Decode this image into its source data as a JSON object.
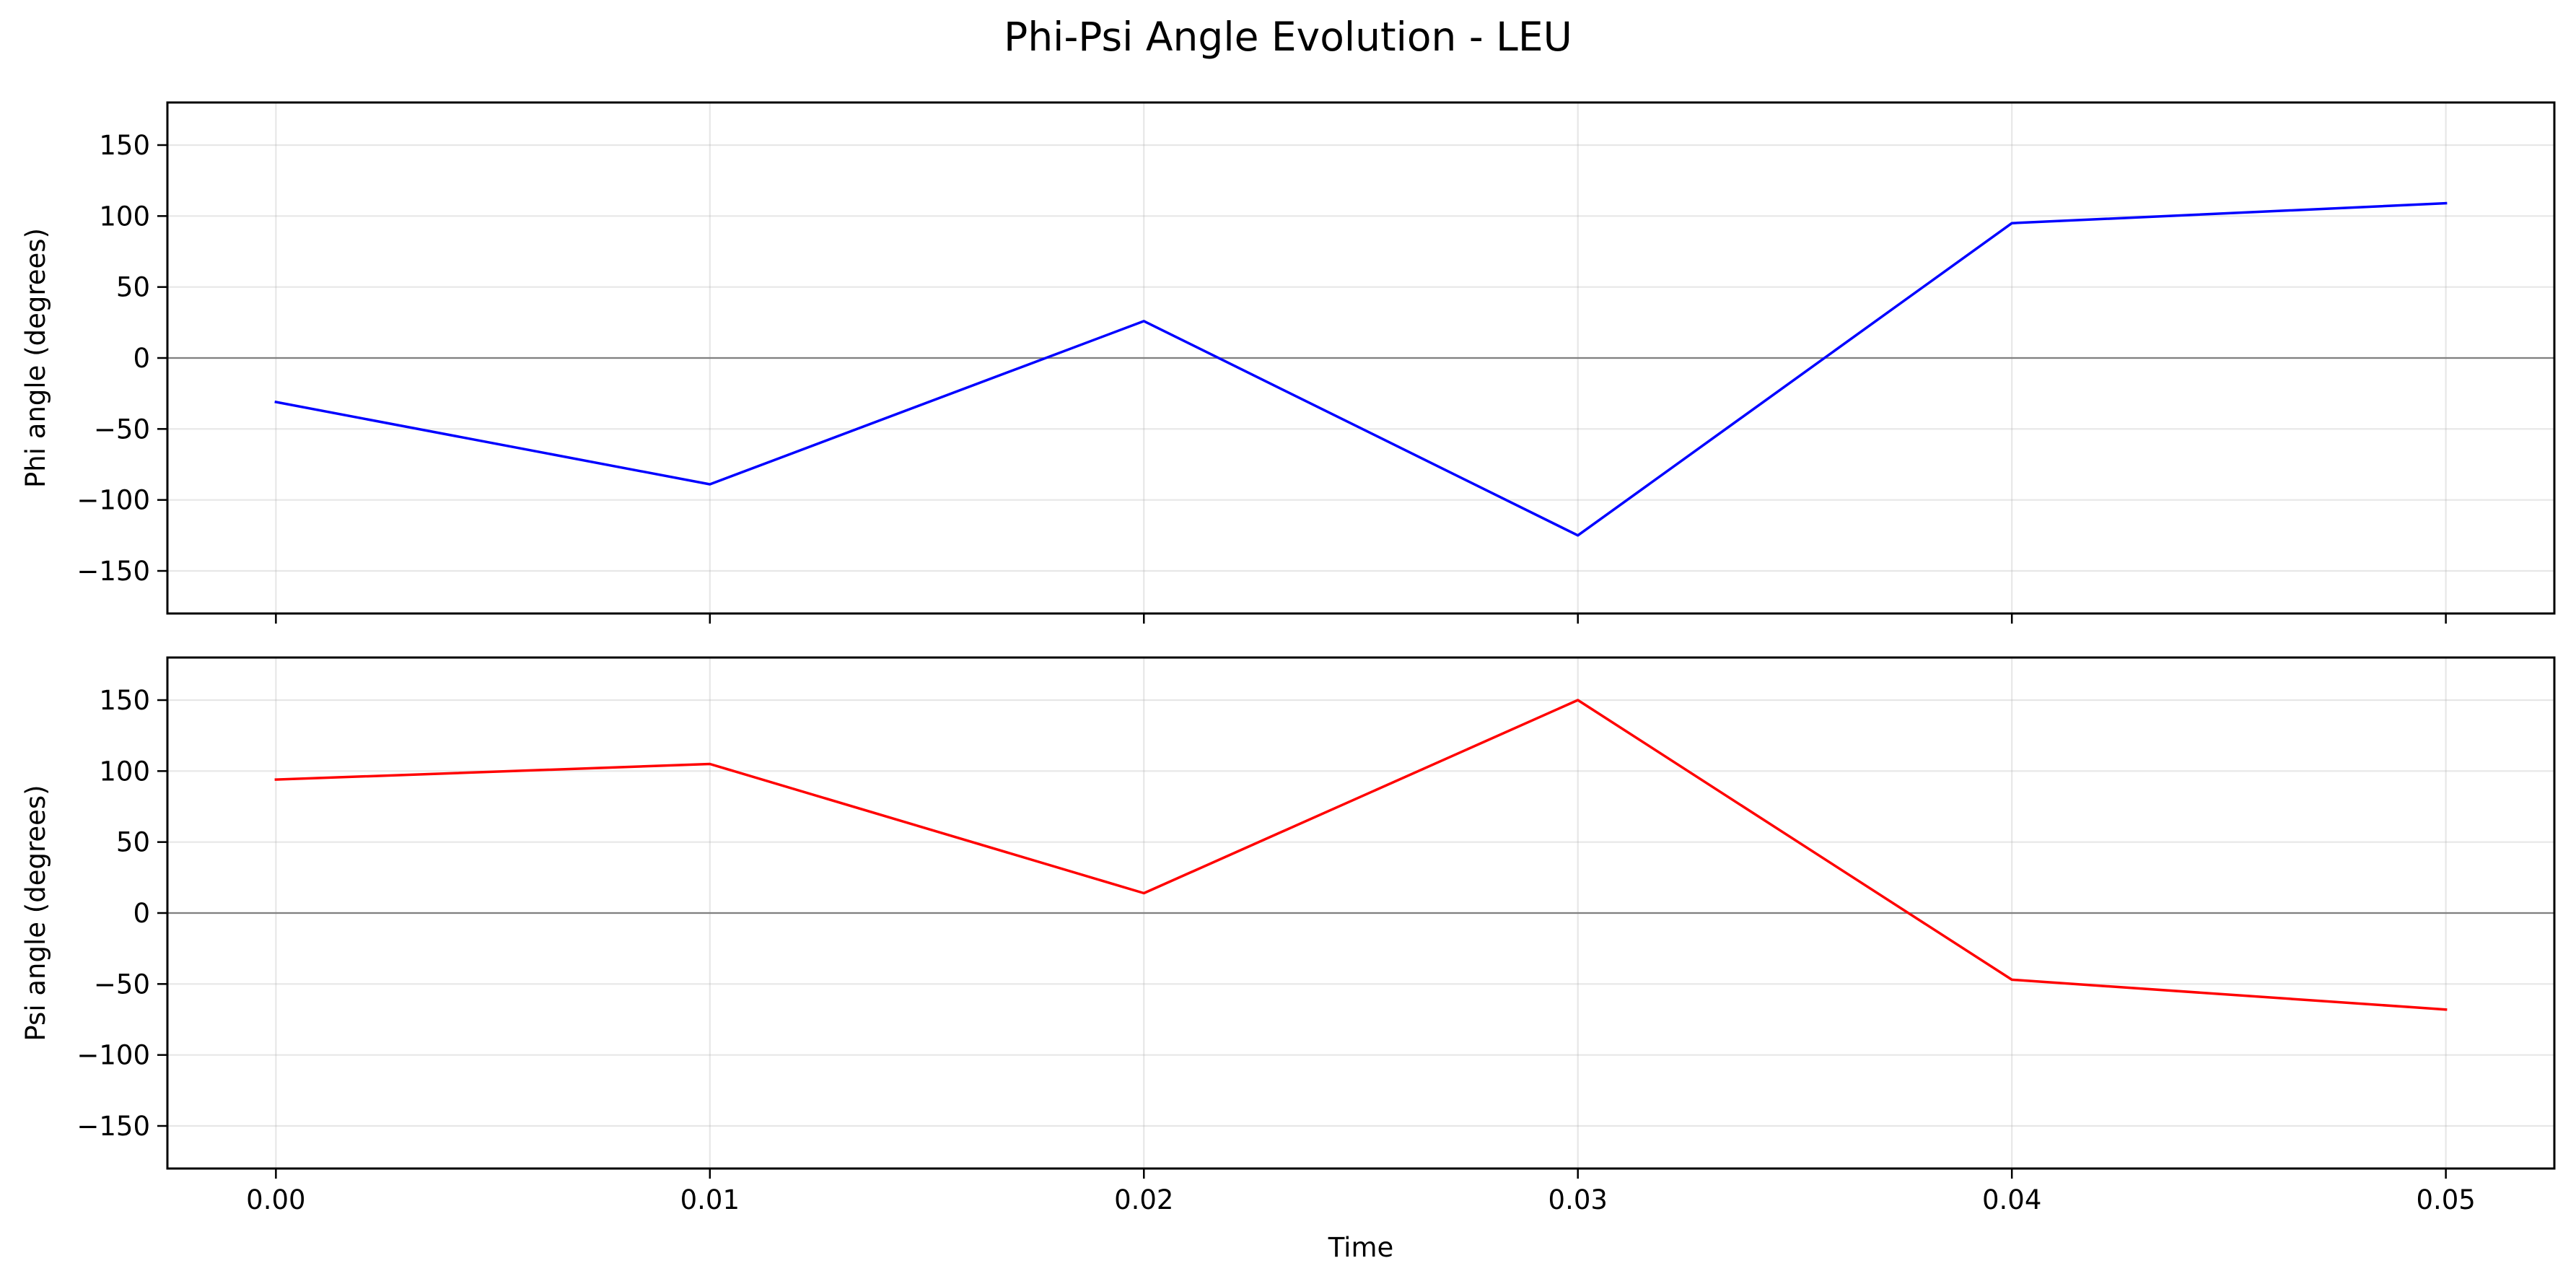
{
  "figure": {
    "title": "Phi-Psi Angle Evolution - LEU"
  },
  "chart_data": [
    {
      "type": "line",
      "title": "",
      "xlabel": "",
      "ylabel": "Phi angle (degrees)",
      "x": [
        0.0,
        0.01,
        0.02,
        0.03,
        0.04,
        0.05
      ],
      "x_tick_labels": [
        "0.00",
        "0.01",
        "0.02",
        "0.03",
        "0.04",
        "0.05"
      ],
      "x_tick_labels_visible": false,
      "xlim": [
        -0.0025,
        0.0525
      ],
      "ylim": [
        -180,
        180
      ],
      "y_ticks": [
        -150,
        -100,
        -50,
        0,
        50,
        100,
        150
      ],
      "y_tick_labels": [
        "−150",
        "−100",
        "−50",
        "0",
        "50",
        "100",
        "150"
      ],
      "grid": true,
      "reference_line_y": 0,
      "series": [
        {
          "values": [
            -31,
            -89,
            26,
            -125,
            95,
            109
          ],
          "color": "#0000ff"
        }
      ]
    },
    {
      "type": "line",
      "title": "",
      "xlabel": "Time",
      "ylabel": "Psi angle (degrees)",
      "x": [
        0.0,
        0.01,
        0.02,
        0.03,
        0.04,
        0.05
      ],
      "x_tick_labels": [
        "0.00",
        "0.01",
        "0.02",
        "0.03",
        "0.04",
        "0.05"
      ],
      "x_tick_labels_visible": true,
      "xlim": [
        -0.0025,
        0.0525
      ],
      "ylim": [
        -180,
        180
      ],
      "y_ticks": [
        -150,
        -100,
        -50,
        0,
        50,
        100,
        150
      ],
      "y_tick_labels": [
        "−150",
        "−100",
        "−50",
        "0",
        "50",
        "100",
        "150"
      ],
      "grid": true,
      "reference_line_y": 0,
      "series": [
        {
          "values": [
            94,
            105,
            14,
            150,
            -47,
            -68
          ],
          "color": "#ff0000"
        }
      ]
    }
  ]
}
